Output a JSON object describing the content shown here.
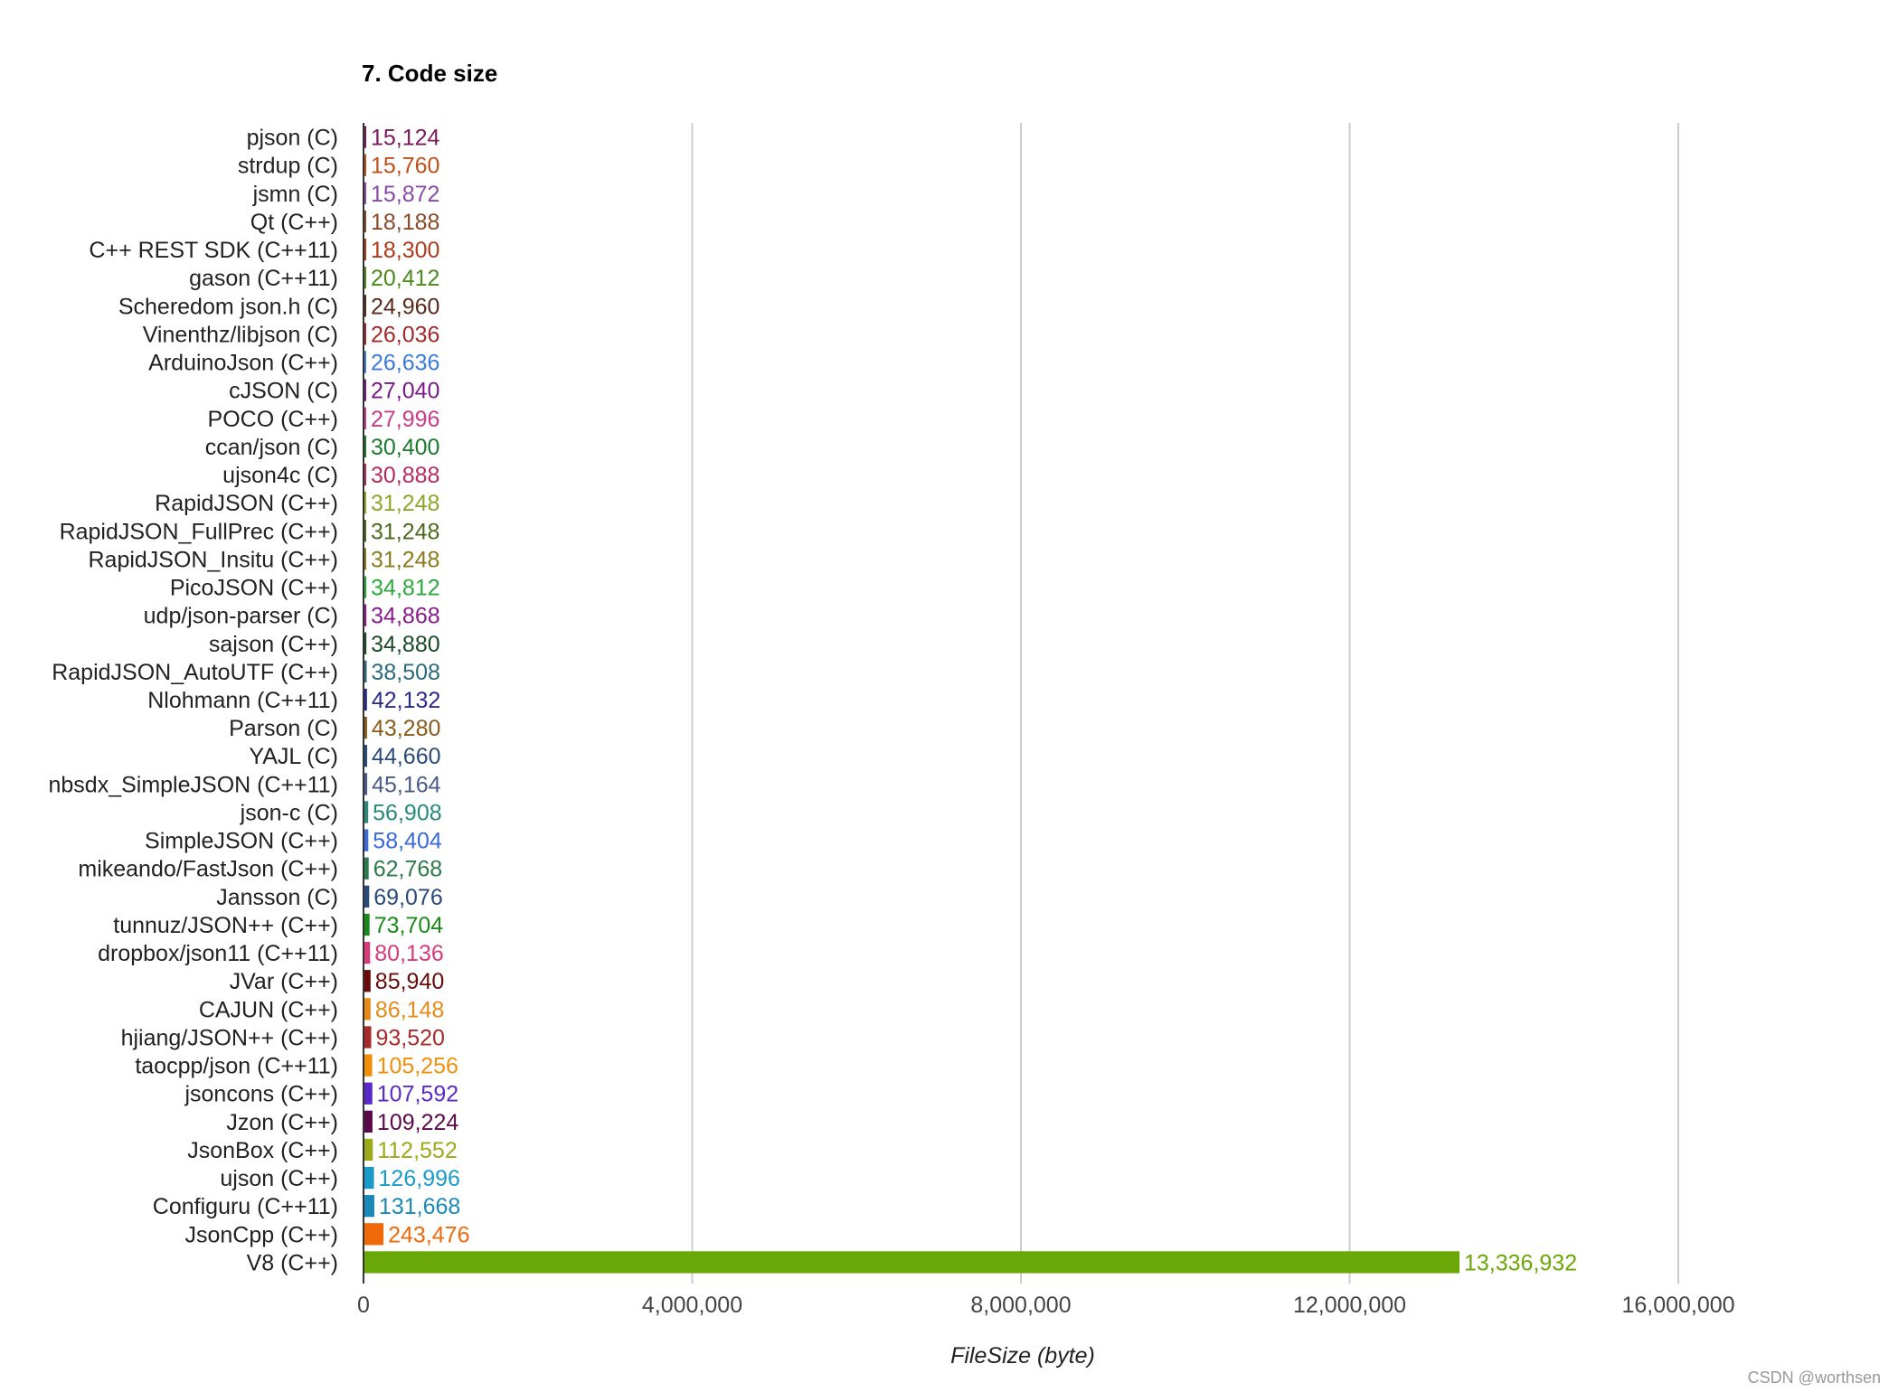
{
  "watermark": "CSDN @worthsen",
  "chart_data": {
    "type": "bar",
    "orientation": "horizontal",
    "title": "7. Code size",
    "xlabel": "FileSize (byte)",
    "ylabel": "",
    "xlim": [
      0,
      16000000
    ],
    "xticks": [
      0,
      4000000,
      8000000,
      12000000,
      16000000
    ],
    "xtick_labels": [
      "0",
      "4,000,000",
      "8,000,000",
      "12,000,000",
      "16,000,000"
    ],
    "grid": true,
    "legend": "none",
    "categories": [
      "pjson (C)",
      "strdup (C)",
      "jsmn (C)",
      "Qt (C++)",
      "C++ REST SDK (C++11)",
      "gason (C++11)",
      "Scheredom json.h (C)",
      "Vinenthz/libjson (C)",
      "ArduinoJson (C++)",
      "cJSON (C)",
      "POCO (C++)",
      "ccan/json (C)",
      "ujson4c (C)",
      "RapidJSON (C++)",
      "RapidJSON_FullPrec (C++)",
      "RapidJSON_Insitu (C++)",
      "PicoJSON (C++)",
      "udp/json-parser (C)",
      "sajson (C++)",
      "RapidJSON_AutoUTF (C++)",
      "Nlohmann (C++11)",
      "Parson (C)",
      "YAJL (C)",
      "nbsdx_SimpleJSON (C++11)",
      "json-c (C)",
      "SimpleJSON (C++)",
      "mikeando/FastJson (C++)",
      "Jansson (C)",
      "tunnuz/JSON++ (C++)",
      "dropbox/json11 (C++11)",
      "JVar (C++)",
      "CAJUN (C++)",
      "hjiang/JSON++ (C++)",
      "taocpp/json (C++11)",
      "jsoncons (C++)",
      "Jzon (C++)",
      "JsonBox (C++)",
      "ujson (C++)",
      "Configuru (C++11)",
      "JsonCpp (C++)",
      "V8 (C++)"
    ],
    "values": [
      15124,
      15760,
      15872,
      18188,
      18300,
      20412,
      24960,
      26036,
      26636,
      27040,
      27996,
      30400,
      30888,
      31248,
      31248,
      31248,
      34812,
      34868,
      34880,
      38508,
      42132,
      43280,
      44660,
      45164,
      56908,
      58404,
      62768,
      69076,
      73704,
      80136,
      85940,
      86148,
      93520,
      105256,
      107592,
      109224,
      112552,
      126996,
      131668,
      243476,
      13336932
    ],
    "value_labels": [
      "15,124",
      "15,760",
      "15,872",
      "18,188",
      "18,300",
      "20,412",
      "24,960",
      "26,036",
      "26,636",
      "27,040",
      "27,996",
      "30,400",
      "30,888",
      "31,248",
      "31,248",
      "31,248",
      "34,812",
      "34,868",
      "34,880",
      "38,508",
      "42,132",
      "43,280",
      "44,660",
      "45,164",
      "56,908",
      "58,404",
      "62,768",
      "69,076",
      "73,704",
      "80,136",
      "85,940",
      "86,148",
      "93,520",
      "105,256",
      "107,592",
      "109,224",
      "112,552",
      "126,996",
      "131,668",
      "243,476",
      "13,336,932"
    ],
    "colors": [
      "#7a1a5a",
      "#c0501a",
      "#8a4aa8",
      "#8a4a2a",
      "#b03a1a",
      "#4a8a1a",
      "#5a2a1a",
      "#a02a2a",
      "#3a7ad8",
      "#7a1a8a",
      "#c83a8a",
      "#1a7a2a",
      "#b82a5a",
      "#8aa82a",
      "#4a6a1a",
      "#8a7a1a",
      "#2aaa3a",
      "#8a1a8a",
      "#1a4a2a",
      "#2a6a7a",
      "#2a2a8a",
      "#8a5a1a",
      "#2a4a7a",
      "#4a5a8a",
      "#2a8a7a",
      "#3a6ad8",
      "#2a7a4a",
      "#2a4a7a",
      "#1a8a1a",
      "#d83a7a",
      "#6a0a0a",
      "#e88a1a",
      "#a82a2a",
      "#f0900a",
      "#5a2ac8",
      "#5a0a4a",
      "#9aaa1a",
      "#1a9ac8",
      "#1a88b8",
      "#f06a0a",
      "#6aa808"
    ]
  }
}
